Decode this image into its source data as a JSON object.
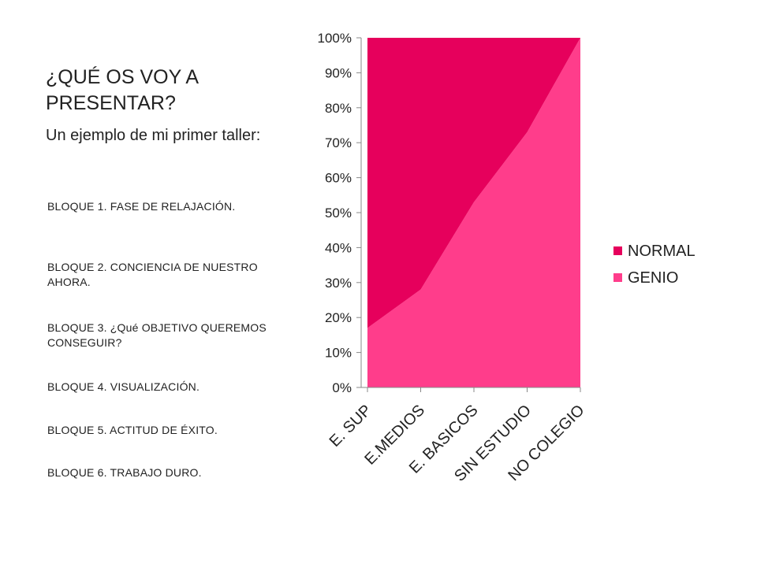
{
  "slide": {
    "title": "¿QUÉ OS VOY A PRESENTAR?",
    "subtitle": "Un ejemplo de mi primer taller:",
    "bloques": [
      "BLOQUE 1. FASE DE RELAJACIÓN.",
      "BLOQUE 2. CONCIENCIA DE NUESTRO AHORA.",
      "BLOQUE 3. ¿Qué OBJETIVO QUEREMOS CONSEGUIR?",
      "BLOQUE 4. VISUALIZACIÓN.",
      "BLOQUE 5. ACTITUD DE ÉXITO.",
      "BLOQUE 6. TRABAJO DURO."
    ]
  },
  "chart_data": {
    "type": "area",
    "stacked_percent": true,
    "categories": [
      "E. SUP",
      "E.MEDIOS",
      "E. BASICOS",
      "SIN ESTUDIO",
      "NO COLEGIO"
    ],
    "series": [
      {
        "name": "GENIO",
        "values": [
          17,
          28,
          53,
          73,
          100
        ],
        "color": "#ff3d8b"
      },
      {
        "name": "NORMAL",
        "values": [
          83,
          72,
          47,
          27,
          0
        ],
        "color": "#e6005c"
      }
    ],
    "yticks": [
      "0%",
      "10%",
      "20%",
      "30%",
      "40%",
      "50%",
      "60%",
      "70%",
      "80%",
      "90%",
      "100%"
    ],
    "ylim": [
      0,
      100
    ],
    "legend": [
      "NORMAL",
      "GENIO"
    ],
    "legend_position": "right",
    "grid": false
  }
}
